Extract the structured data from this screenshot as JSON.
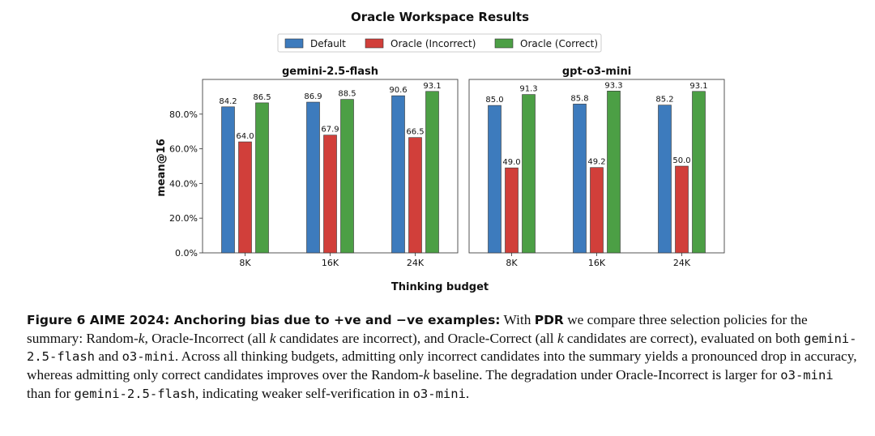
{
  "chart_data": {
    "type": "bar",
    "title": "Oracle Workspace Results",
    "ylabel": "mean@16",
    "xlabel": "Thinking budget",
    "ylim": [
      0,
      100
    ],
    "yticks": [
      "0.0%",
      "20.0%",
      "40.0%",
      "60.0%",
      "80.0%"
    ],
    "ytick_values": [
      0,
      20,
      40,
      60,
      80
    ],
    "legend_position": "top-center",
    "grid": false,
    "series_colors": [
      "#3d7bbd",
      "#d13f3a",
      "#4c9f45"
    ],
    "legend": [
      "Default",
      "Oracle (Incorrect)",
      "Oracle (Correct)"
    ],
    "panels": [
      {
        "title": "gemini-2.5-flash",
        "categories": [
          "8K",
          "16K",
          "24K"
        ],
        "series": [
          {
            "name": "Default",
            "values": [
              84.2,
              86.9,
              90.6
            ]
          },
          {
            "name": "Oracle (Incorrect)",
            "values": [
              64.0,
              67.9,
              66.5
            ]
          },
          {
            "name": "Oracle (Correct)",
            "values": [
              86.5,
              88.5,
              93.1
            ]
          }
        ]
      },
      {
        "title": "gpt-o3-mini",
        "categories": [
          "8K",
          "16K",
          "24K"
        ],
        "series": [
          {
            "name": "Default",
            "values": [
              85.0,
              85.8,
              85.2
            ]
          },
          {
            "name": "Oracle (Incorrect)",
            "values": [
              49.0,
              49.2,
              50.0
            ]
          },
          {
            "name": "Oracle (Correct)",
            "values": [
              91.3,
              93.3,
              93.1
            ]
          }
        ]
      }
    ]
  },
  "caption": {
    "label": "Figure 6  AIME 2024: Anchoring bias due to +ve and −ve examples:",
    "p1": " With ",
    "pdr": "PDR",
    "p2": " we compare three selection policies for the summary: Random-",
    "k1": "k",
    "p3": ", Oracle-Incorrect (all ",
    "k2": "k",
    "p4": " candidates are incorrect), and Oracle-Correct (all ",
    "k3": "k",
    "p5": " candidates are correct), evaluated on both ",
    "m1": "gemini-2.5-flash",
    "p6": " and ",
    "m2": "o3-mini",
    "p7": ". Across all thinking budgets, admitting only incorrect candidates into the summary yields a pronounced drop in accuracy, whereas admitting only correct candidates improves over the Random-",
    "k4": "k",
    "p8": " baseline. The degradation under Oracle-Incorrect is larger for ",
    "m3": "o3-mini",
    "p9": " than for ",
    "m4": "gemini-2.5-flash",
    "p10": ", indicating weaker self-verification in ",
    "m5": "o3-mini",
    "p11": "."
  }
}
